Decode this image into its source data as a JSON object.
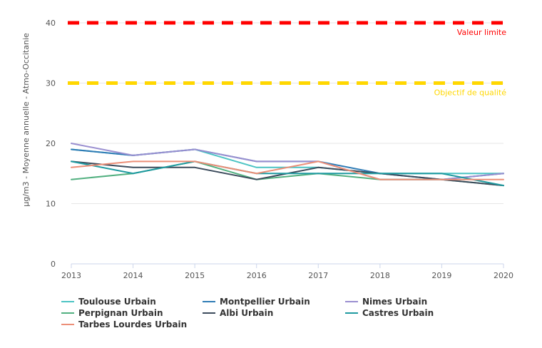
{
  "chart_data": {
    "type": "line",
    "ylabel": "µg/m3 - Moyenne annuelle - Atmo-Occitanie",
    "xlabel": "",
    "x": [
      "2013",
      "2014",
      "2015",
      "2016",
      "2017",
      "2018",
      "2019",
      "2020"
    ],
    "ylim": [
      0,
      40
    ],
    "yticks": [
      0,
      10,
      20,
      30,
      40
    ],
    "grid": true,
    "legend_position": "bottom",
    "reference_lines": [
      {
        "label": "Valeur limite",
        "value": 40,
        "color": "#ff0000"
      },
      {
        "label": "Objectif de qualité",
        "value": 30,
        "color": "#ffd700"
      }
    ],
    "series": [
      {
        "name": "Toulouse Urbain",
        "color": "#4cc4c4",
        "values": [
          19,
          18,
          19,
          16,
          16,
          15,
          15,
          15
        ]
      },
      {
        "name": "Montpellier Urbain",
        "color": "#2e7bb5",
        "values": [
          19,
          18,
          19,
          17,
          17,
          15,
          14,
          15
        ]
      },
      {
        "name": "Nimes Urbain",
        "color": "#9a8fd0",
        "values": [
          20,
          18,
          19,
          17,
          17,
          14,
          14,
          15
        ]
      },
      {
        "name": "Perpignan Urbain",
        "color": "#52b080",
        "values": [
          14,
          15,
          17,
          14,
          15,
          14,
          14,
          13
        ]
      },
      {
        "name": "Albi Urbain",
        "color": "#3c4b5c",
        "values": [
          17,
          16,
          16,
          14,
          16,
          15,
          14,
          13
        ]
      },
      {
        "name": "Castres Urbain",
        "color": "#1f9aa0",
        "values": [
          17,
          15,
          17,
          15,
          15,
          15,
          15,
          13
        ]
      },
      {
        "name": "Tarbes Lourdes Urbain",
        "color": "#ec8f78",
        "values": [
          16,
          17,
          17,
          15,
          17,
          14,
          14,
          14
        ]
      }
    ]
  }
}
